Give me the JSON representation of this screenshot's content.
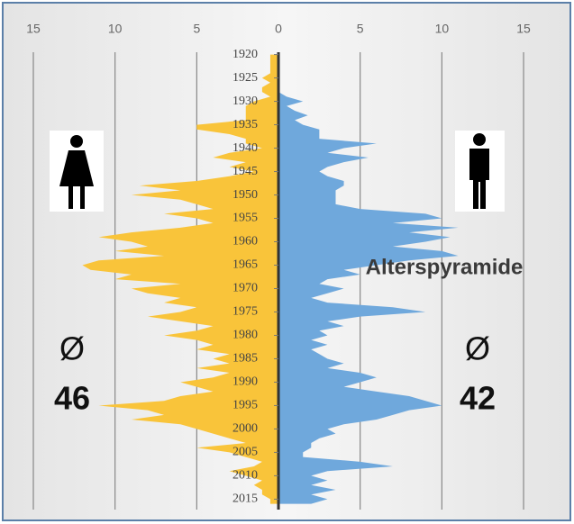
{
  "chart_data": {
    "type": "pyramid",
    "title": "Alterspyramide",
    "annotations": [
      {
        "text": "Ø"
      },
      {
        "text": "46"
      },
      {
        "text": "Ø"
      },
      {
        "text": "42"
      }
    ],
    "y": [
      1920,
      1921,
      1922,
      1923,
      1924,
      1925,
      1926,
      1927,
      1928,
      1929,
      1930,
      1931,
      1932,
      1933,
      1934,
      1935,
      1936,
      1937,
      1938,
      1939,
      1940,
      1941,
      1942,
      1943,
      1944,
      1945,
      1946,
      1947,
      1948,
      1949,
      1950,
      1951,
      1952,
      1953,
      1954,
      1955,
      1956,
      1957,
      1958,
      1959,
      1960,
      1961,
      1962,
      1963,
      1964,
      1965,
      1966,
      1967,
      1968,
      1969,
      1970,
      1971,
      1972,
      1973,
      1974,
      1975,
      1976,
      1977,
      1978,
      1979,
      1980,
      1981,
      1982,
      1983,
      1984,
      1985,
      1986,
      1987,
      1988,
      1989,
      1990,
      1991,
      1992,
      1993,
      1994,
      1995,
      1996,
      1997,
      1998,
      1999,
      2000,
      2001,
      2002,
      2003,
      2004,
      2005,
      2006,
      2007,
      2008,
      2009,
      2010,
      2011,
      2012,
      2013,
      2014,
      2015,
      2016
    ],
    "series": [
      {
        "color": "#f9c43a",
        "side": "left",
        "values": [
          0.5,
          0.5,
          0.5,
          0.5,
          0.5,
          1,
          0.5,
          1,
          1,
          0.5,
          1.5,
          2,
          2,
          2,
          2,
          5,
          5,
          3,
          2,
          2,
          1,
          3,
          4,
          2,
          3,
          1.5,
          3,
          5,
          8.5,
          6,
          9,
          6,
          5,
          4,
          7,
          5,
          4,
          6,
          9,
          11,
          9,
          8,
          10,
          7,
          11,
          12,
          11.5,
          9,
          10,
          6,
          9,
          8,
          6,
          7,
          5,
          6,
          8,
          6,
          4,
          5,
          7,
          5,
          4,
          5,
          3,
          4,
          3,
          5,
          3,
          4,
          6,
          5,
          4,
          6,
          7,
          11,
          8,
          7,
          9,
          6,
          5,
          4,
          3,
          2,
          5,
          3,
          2,
          1,
          1.5,
          3,
          2,
          1,
          1.5,
          1,
          1,
          0.5,
          0.5
        ]
      },
      {
        "color": "#6fa8dc",
        "side": "right",
        "values": [
          0,
          0,
          0,
          0,
          0,
          0,
          0,
          0,
          0,
          0.5,
          1.5,
          0.5,
          1,
          1.8,
          1,
          1.5,
          2.5,
          2.5,
          2.5,
          6,
          4,
          3,
          5.5,
          4,
          3,
          2.5,
          3,
          4,
          4,
          3.5,
          3.5,
          3.5,
          3.5,
          5,
          9,
          10,
          7,
          11,
          8,
          10.5,
          9,
          7,
          10,
          11,
          8,
          6,
          4,
          5,
          3,
          2.5,
          4,
          3,
          2,
          3,
          7,
          9,
          5,
          3,
          4,
          2.5,
          3,
          2,
          3,
          2,
          2.5,
          3,
          4,
          3,
          5,
          6,
          5,
          4,
          6,
          8,
          9,
          10,
          8,
          7,
          6,
          4,
          3,
          3.5,
          2.5,
          2,
          2,
          1.5,
          1.5,
          5,
          7,
          3,
          2,
          3,
          2,
          3.5,
          2,
          3,
          2
        ]
      }
    ],
    "xlim": [
      -16.6,
      17.7
    ],
    "xticks": [
      {
        "value": -15,
        "label": "15"
      },
      {
        "value": -10,
        "label": "10"
      },
      {
        "value": -5,
        "label": "5"
      },
      0,
      5,
      10,
      15
    ],
    "ylim": [
      1917,
      2018
    ],
    "yticks": [
      1920,
      1925,
      1930,
      1935,
      1940,
      1945,
      1950,
      1955,
      1960,
      1965,
      1970,
      1975,
      1980,
      1985,
      1990,
      1995,
      2000,
      2005,
      2010,
      2015
    ],
    "grid": true
  }
}
